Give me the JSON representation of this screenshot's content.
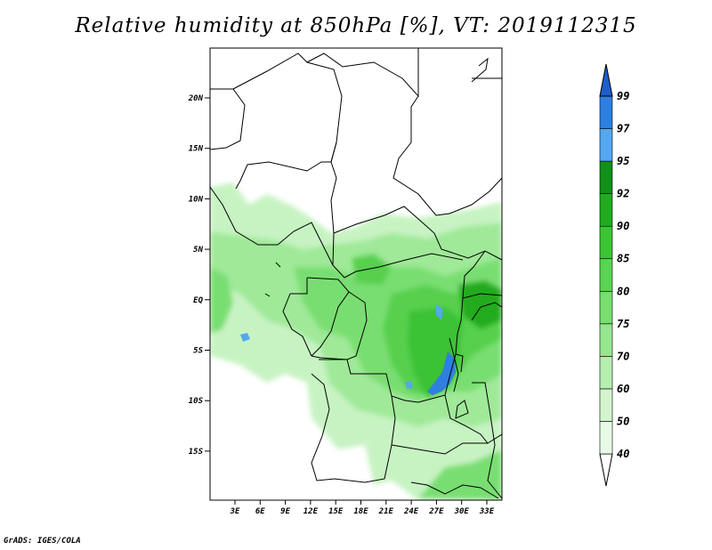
{
  "title": "Relative humidity at 850hPa [%], VT: 2019112315",
  "credit": "GrADS: IGES/COLA",
  "lat_ticks": [
    "20N",
    "15N",
    "10N",
    "5N",
    "EQ",
    "5S",
    "10S",
    "15S"
  ],
  "lon_ticks": [
    "3E",
    "6E",
    "9E",
    "12E",
    "15E",
    "18E",
    "21E",
    "24E",
    "27E",
    "30E",
    "33E"
  ],
  "colorbar": {
    "levels": [
      "40",
      "50",
      "60",
      "70",
      "75",
      "80",
      "85",
      "90",
      "92",
      "95",
      "97",
      "99"
    ],
    "colors": [
      "#ffffff",
      "#e8fbe6",
      "#d2f5ce",
      "#b5efb0",
      "#96e68f",
      "#78de70",
      "#5ad452",
      "#3cc435",
      "#22ab1f",
      "#12901a",
      "#55a7f0",
      "#2f7fe0",
      "#1c5fca"
    ]
  }
}
